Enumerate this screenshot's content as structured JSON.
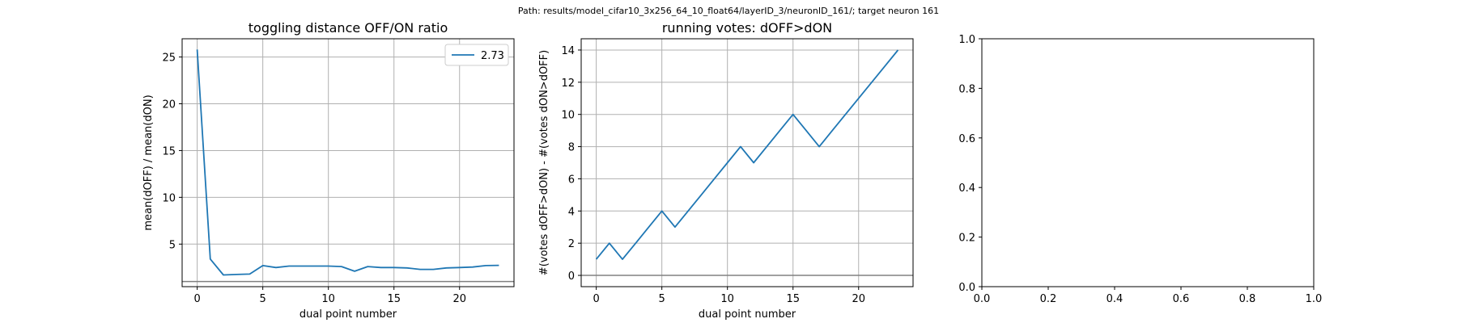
{
  "suptitle": "Path: results/model_cifar10_3x256_64_10_float64/layerID_3/neuronID_161/; target neuron 161",
  "colors": {
    "series": "#1f77b4",
    "hline": "#808080",
    "grid": "#b0b0b0"
  },
  "chart_data": [
    {
      "type": "line",
      "title": "toggling distance OFF/ON ratio",
      "xlabel": "dual point number",
      "ylabel": "mean(dOFF) / mean(dON)",
      "xlim": [
        -1.15,
        24.15
      ],
      "ylim": [
        0.45,
        26.95
      ],
      "xticks": [
        0,
        5,
        10,
        15,
        20
      ],
      "yticks": [
        5,
        10,
        15,
        20,
        25
      ],
      "grid": true,
      "legend": {
        "placement": "upper right",
        "entries": [
          "2.73"
        ]
      },
      "hline": 1,
      "series": [
        {
          "name": "2.73",
          "x": [
            0,
            1,
            2,
            3,
            4,
            5,
            6,
            7,
            8,
            9,
            10,
            11,
            12,
            13,
            14,
            15,
            16,
            17,
            18,
            19,
            20,
            21,
            22,
            23
          ],
          "y": [
            25.8,
            3.4,
            1.7,
            1.75,
            1.8,
            2.7,
            2.5,
            2.65,
            2.65,
            2.65,
            2.65,
            2.6,
            2.1,
            2.6,
            2.5,
            2.5,
            2.45,
            2.3,
            2.3,
            2.45,
            2.5,
            2.55,
            2.7,
            2.73
          ]
        }
      ]
    },
    {
      "type": "line",
      "title": "running votes: dOFF>dON",
      "xlabel": "dual point number",
      "ylabel": "#(votes dOFF>dON) - #(votes dON>dOFF)",
      "xlim": [
        -1.15,
        24.15
      ],
      "ylim": [
        -0.7,
        14.7
      ],
      "xticks": [
        0,
        5,
        10,
        15,
        20
      ],
      "yticks": [
        0,
        2,
        4,
        6,
        8,
        10,
        12,
        14
      ],
      "grid": true,
      "hline": 0,
      "series": [
        {
          "x": [
            0,
            1,
            2,
            3,
            4,
            5,
            6,
            7,
            8,
            9,
            10,
            11,
            12,
            13,
            14,
            15,
            16,
            17,
            18,
            19,
            20,
            21,
            22,
            23
          ],
          "y": [
            1,
            2,
            1,
            2,
            3,
            4,
            3,
            4,
            5,
            6,
            7,
            8,
            7,
            8,
            9,
            10,
            9,
            8,
            9,
            10,
            11,
            12,
            13,
            14
          ]
        }
      ]
    },
    {
      "type": "line",
      "title": "",
      "xlim": [
        0,
        1
      ],
      "ylim": [
        0,
        1
      ],
      "xticks": [
        0.0,
        0.2,
        0.4,
        0.6,
        0.8,
        1.0
      ],
      "yticks": [
        0.0,
        0.2,
        0.4,
        0.6,
        0.8,
        1.0
      ],
      "xticklabels": [
        "0.0",
        "0.2",
        "0.4",
        "0.6",
        "0.8",
        "1.0"
      ],
      "yticklabels": [
        "0.0",
        "0.2",
        "0.4",
        "0.6",
        "0.8",
        "1.0"
      ],
      "grid": false,
      "series": []
    }
  ]
}
